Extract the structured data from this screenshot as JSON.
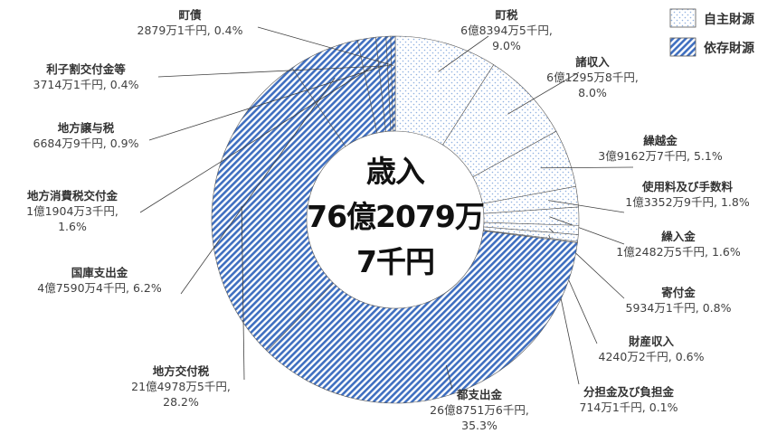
{
  "chart_data": {
    "type": "donut",
    "center_label": "歳入\n76億2079万\n7千円",
    "series": [
      {
        "name": "自主財源",
        "color": "#8fb0e0",
        "pattern": "dots",
        "categories": [
          "町税",
          "諸収入",
          "繰越金",
          "使用料及び手数料",
          "繰入金",
          "寄付金",
          "財産収入",
          "分担金及び負担金"
        ],
        "values": [
          9.0,
          8.0,
          5.1,
          1.8,
          1.6,
          0.8,
          0.6,
          0.1
        ],
        "value_labels": [
          "6億8394万5千円,\n9.0%",
          "6億1295万8千円,\n8.0%",
          "3億9162万7千円, 5.1%",
          "1億3352万9千円, 1.8%",
          "1億2482万5千円, 1.6%",
          "5934万1千円, 0.8%",
          "4240万2千円, 0.6%",
          "714万1千円, 0.1%"
        ]
      },
      {
        "name": "依存財源",
        "color": "#3f6fc0",
        "pattern": "hatch",
        "categories": [
          "都支出金",
          "地方交付税",
          "国庫支出金",
          "地方消費税交付金",
          "地方譲与税",
          "利子割交付金等",
          "町債"
        ],
        "values": [
          35.3,
          28.2,
          6.2,
          1.6,
          0.9,
          0.4,
          0.4
        ],
        "value_labels": [
          "26億8751万6千円,\n35.3%",
          "21億4978万5千円,\n28.2%",
          "4億7590万4千円, 6.2%",
          "1億1904万3千円,\n1.6%",
          "6684万9千円, 0.9%",
          "3714万1千円, 0.4%",
          "2879万1千円, 0.4%"
        ]
      }
    ]
  }
}
